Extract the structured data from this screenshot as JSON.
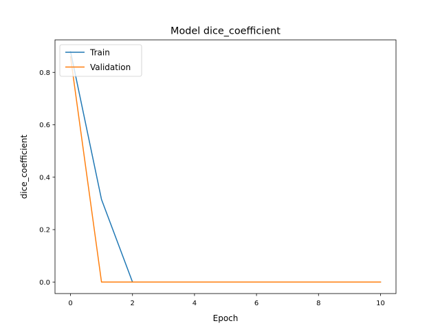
{
  "chart_data": {
    "type": "line",
    "title": "Model dice_coefficient",
    "xlabel": "Epoch",
    "ylabel": "dice_coefficient",
    "xlim": [
      -0.5,
      10.5
    ],
    "ylim": [
      -0.044,
      0.924
    ],
    "xticks": [
      0,
      2,
      4,
      6,
      8,
      10
    ],
    "yticks": [
      0.0,
      0.2,
      0.4,
      0.6,
      0.8
    ],
    "grid": false,
    "legend_position": "upper-left",
    "x": [
      0,
      1,
      2,
      3,
      4,
      5,
      6,
      7,
      8,
      9,
      10
    ],
    "series": [
      {
        "name": "Train",
        "color": "#1f77b4",
        "values": [
          0.88,
          0.315,
          0.0,
          0.0,
          0.0,
          0.0,
          0.0,
          0.0,
          0.0,
          0.0,
          0.0
        ]
      },
      {
        "name": "Validation",
        "color": "#ff7f0e",
        "values": [
          0.86,
          0.0,
          0.0,
          0.0,
          0.0,
          0.0,
          0.0,
          0.0,
          0.0,
          0.0,
          0.0
        ]
      }
    ]
  }
}
